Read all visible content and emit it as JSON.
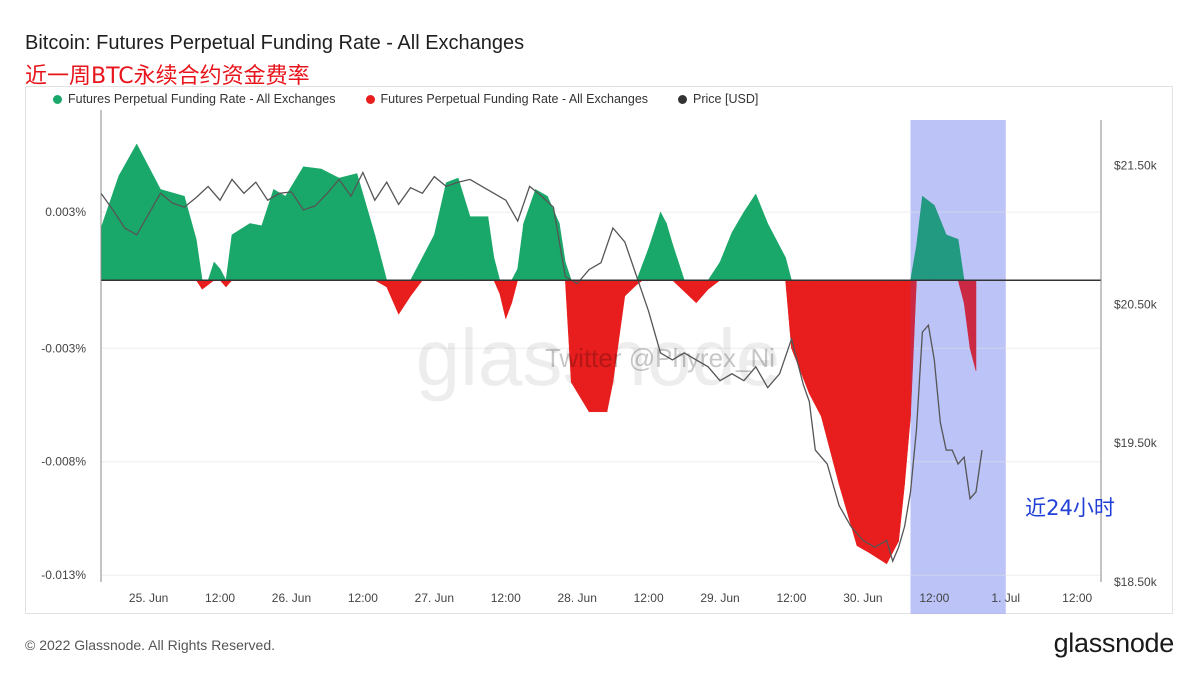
{
  "title": "Bitcoin: Futures Perpetual Funding Rate - All Exchanges",
  "subtitle": "近一周BTC永续合约资金费率",
  "legend": [
    {
      "label": "Futures Perpetual Funding Rate - All Exchanges",
      "color": "#1aa86a"
    },
    {
      "label": "Futures Perpetual Funding Rate - All Exchanges",
      "color": "#e81e1e"
    },
    {
      "label": "Price [USD]",
      "color": "#333333"
    }
  ],
  "watermark": "glassnode",
  "twitter_watermark": "Twitter @Phyrex_Ni",
  "highlight_label": "近24小时",
  "footer": "© 2022 Glassnode. All Rights Reserved.",
  "brand": "glassnode",
  "colors": {
    "positive": "#1aa86a",
    "negative": "#e81e1e",
    "price": "#555555",
    "highlight": "#c7ccf7"
  },
  "chart_data": {
    "type": "area",
    "x_ticks": [
      "25. Jun",
      "12:00",
      "26. Jun",
      "12:00",
      "27. Jun",
      "12:00",
      "28. Jun",
      "12:00",
      "29. Jun",
      "12:00",
      "30. Jun",
      "12:00",
      "1. Jul",
      "12:00"
    ],
    "x_range_hours": [
      -8,
      160
    ],
    "y_left": {
      "ticks": [
        "0.003%",
        "-0.003%",
        "-0.008%",
        "-0.013%"
      ],
      "tick_values": [
        0.003,
        -0.003,
        -0.008,
        -0.013
      ],
      "range": [
        -0.0133,
        0.0075
      ]
    },
    "y_right": {
      "ticks": [
        "$21.50k",
        "$20.50k",
        "$19.50k",
        "$18.50k"
      ],
      "tick_values": [
        21500,
        20500,
        19500,
        18500
      ],
      "range": [
        18500,
        21900
      ]
    },
    "highlight_hours": [
      128,
      144
    ],
    "series": [
      {
        "name": "Futures Perpetual Funding Rate - All Exchanges",
        "axis": "left",
        "points": [
          [
            -8.0,
            0.0023
          ],
          [
            -5,
            0.0046
          ],
          [
            -2,
            0.006
          ],
          [
            2,
            0.004
          ],
          [
            6,
            0.0037
          ],
          [
            8,
            0.0018
          ],
          [
            9,
            -0.0004
          ],
          [
            10,
            -0.0002
          ],
          [
            11,
            0.0008
          ],
          [
            12,
            0.0005
          ],
          [
            13,
            -0.0003
          ],
          [
            14,
            0.002
          ],
          [
            17,
            0.0025
          ],
          [
            19,
            0.0024
          ],
          [
            21,
            0.004
          ],
          [
            23,
            0.0037
          ],
          [
            26,
            0.005
          ],
          [
            29,
            0.0049
          ],
          [
            32,
            0.0045
          ],
          [
            35,
            0.0047
          ],
          [
            38,
            0.002
          ],
          [
            40,
            -0.0003
          ],
          [
            42,
            -0.0015
          ],
          [
            44,
            -0.0007
          ],
          [
            46,
            0.001
          ],
          [
            48,
            0.002
          ],
          [
            50,
            0.0043
          ],
          [
            52,
            0.0045
          ],
          [
            54,
            0.0028
          ],
          [
            57,
            0.0028
          ],
          [
            58,
            0.001
          ],
          [
            59,
            -0.0006
          ],
          [
            60,
            -0.0017
          ],
          [
            61,
            -0.001
          ],
          [
            62,
            0.0005
          ],
          [
            63,
            0.0025
          ],
          [
            65,
            0.004
          ],
          [
            67,
            0.0037
          ],
          [
            69,
            0.0025
          ],
          [
            70,
            0.0008
          ],
          [
            71,
            -0.0045
          ],
          [
            74,
            -0.0058
          ],
          [
            77,
            -0.0058
          ],
          [
            78,
            -0.0045
          ],
          [
            80,
            -0.0007
          ],
          [
            82,
            -0.0002
          ],
          [
            83,
            0.0007
          ],
          [
            84,
            0.0014
          ],
          [
            86,
            0.003
          ],
          [
            87,
            0.0025
          ],
          [
            88,
            0.0016
          ],
          [
            90,
            -0.0005
          ],
          [
            92,
            -0.001
          ],
          [
            94,
            -0.0004
          ],
          [
            96,
            0.0008
          ],
          [
            98,
            0.0021
          ],
          [
            100,
            0.003
          ],
          [
            102,
            0.0038
          ],
          [
            104,
            0.0025
          ],
          [
            107,
            0.001
          ],
          [
            108,
            -0.003
          ],
          [
            111,
            -0.005
          ],
          [
            113,
            -0.006
          ],
          [
            116,
            -0.009
          ],
          [
            119,
            -0.0117
          ],
          [
            121,
            -0.012
          ],
          [
            124,
            -0.0125
          ],
          [
            126,
            -0.0115
          ],
          [
            127,
            -0.009
          ],
          [
            128,
            -0.006
          ],
          [
            129,
            0.0015
          ],
          [
            130,
            0.0037
          ],
          [
            132,
            0.0033
          ],
          [
            134,
            0.002
          ],
          [
            136,
            0.0018
          ],
          [
            137,
            -0.001
          ],
          [
            138,
            -0.003
          ],
          [
            139,
            -0.004
          ]
        ]
      },
      {
        "name": "Price [USD]",
        "axis": "right",
        "points": [
          [
            -8.0,
            21300
          ],
          [
            -6,
            21180
          ],
          [
            -4,
            21050
          ],
          [
            -2,
            21000
          ],
          [
            0,
            21150
          ],
          [
            2,
            21300
          ],
          [
            4,
            21230
          ],
          [
            6,
            21200
          ],
          [
            8,
            21270
          ],
          [
            10,
            21350
          ],
          [
            12,
            21250
          ],
          [
            14,
            21400
          ],
          [
            16,
            21300
          ],
          [
            18,
            21380
          ],
          [
            20,
            21250
          ],
          [
            22,
            21300
          ],
          [
            24,
            21310
          ],
          [
            26,
            21180
          ],
          [
            28,
            21210
          ],
          [
            30,
            21300
          ],
          [
            32,
            21400
          ],
          [
            34,
            21280
          ],
          [
            36,
            21450
          ],
          [
            38,
            21250
          ],
          [
            40,
            21380
          ],
          [
            42,
            21220
          ],
          [
            44,
            21340
          ],
          [
            46,
            21300
          ],
          [
            48,
            21420
          ],
          [
            50,
            21350
          ],
          [
            52,
            21380
          ],
          [
            54,
            21400
          ],
          [
            56,
            21350
          ],
          [
            58,
            21300
          ],
          [
            60,
            21250
          ],
          [
            62,
            21100
          ],
          [
            64,
            21350
          ],
          [
            66,
            21280
          ],
          [
            68,
            21200
          ],
          [
            70,
            20700
          ],
          [
            72,
            20650
          ],
          [
            74,
            20750
          ],
          [
            76,
            20800
          ],
          [
            78,
            21050
          ],
          [
            80,
            20950
          ],
          [
            82,
            20700
          ],
          [
            84,
            20450
          ],
          [
            86,
            20150
          ],
          [
            88,
            20100
          ],
          [
            90,
            20150
          ],
          [
            92,
            20100
          ],
          [
            94,
            20050
          ],
          [
            96,
            19950
          ],
          [
            98,
            20000
          ],
          [
            100,
            19950
          ],
          [
            102,
            20050
          ],
          [
            104,
            19900
          ],
          [
            106,
            20000
          ],
          [
            108,
            20250
          ],
          [
            110,
            19920
          ],
          [
            111,
            19800
          ],
          [
            112,
            19450
          ],
          [
            114,
            19350
          ],
          [
            116,
            19050
          ],
          [
            118,
            18900
          ],
          [
            120,
            18800
          ],
          [
            122,
            18750
          ],
          [
            124,
            18800
          ],
          [
            125,
            18650
          ],
          [
            126,
            18750
          ],
          [
            127,
            18900
          ],
          [
            128,
            19150
          ],
          [
            129,
            19600
          ],
          [
            130,
            20300
          ],
          [
            131,
            20350
          ],
          [
            132,
            20100
          ],
          [
            133,
            19650
          ],
          [
            134,
            19450
          ],
          [
            135,
            19450
          ],
          [
            136,
            19350
          ],
          [
            137,
            19400
          ],
          [
            138,
            19100
          ],
          [
            139,
            19150
          ],
          [
            140,
            19450
          ]
        ]
      }
    ]
  }
}
